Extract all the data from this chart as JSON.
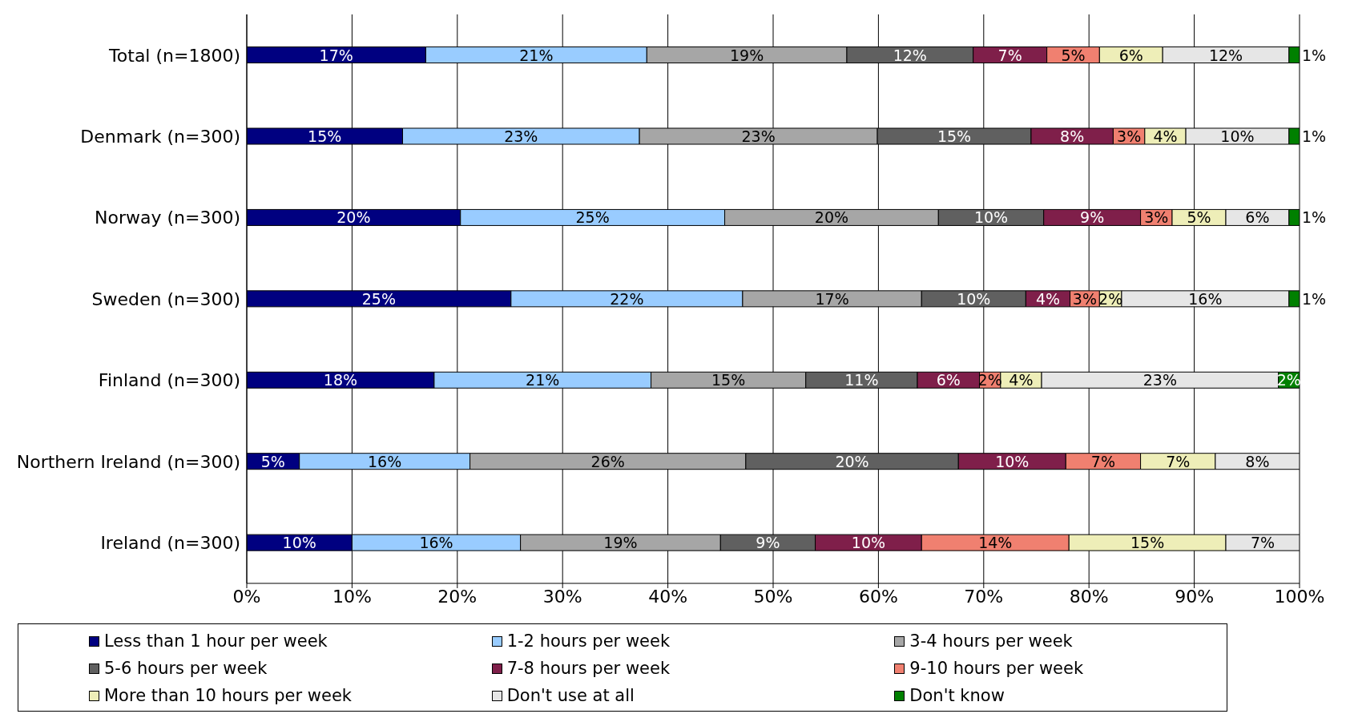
{
  "chart_data": {
    "type": "bar",
    "orientation": "horizontal",
    "stacked": true,
    "categories": [
      "Total (n=1800)",
      "Denmark (n=300)",
      "Norway (n=300)",
      "Sweden (n=300)",
      "Finland (n=300)",
      "Northern Ireland (n=300)",
      "Ireland (n=300)"
    ],
    "xlim": [
      0,
      100
    ],
    "xticks": [
      {
        "value": 0,
        "label": "0%"
      },
      {
        "value": 10,
        "label": "10%"
      },
      {
        "value": 20,
        "label": "20%"
      },
      {
        "value": 30,
        "label": "30%"
      },
      {
        "value": 40,
        "label": "40%"
      },
      {
        "value": 50,
        "label": "50%"
      },
      {
        "value": 60,
        "label": "60%"
      },
      {
        "value": 70,
        "label": "70%"
      },
      {
        "value": 80,
        "label": "80%"
      },
      {
        "value": 90,
        "label": "90%"
      },
      {
        "value": 100,
        "label": "100%"
      }
    ],
    "grid": "x",
    "legend": "bottom",
    "series": [
      {
        "name": "Less than 1 hour per week",
        "color": "#000080",
        "values": [
          17,
          14.8,
          20.3,
          25.1,
          17.8,
          5.0,
          10
        ],
        "value_labels": [
          "17%",
          "15%",
          "20%",
          "25%",
          "18%",
          "5%",
          "10%"
        ]
      },
      {
        "name": "1-2 hours per week",
        "color": "#99ccff",
        "values": [
          21,
          22.5,
          25.1,
          22.0,
          20.6,
          16.2,
          16
        ],
        "value_labels": [
          "21%",
          "23%",
          "25%",
          "22%",
          "21%",
          "16%",
          "16%"
        ]
      },
      {
        "name": "3-4 hours per week",
        "color": "#a6a6a6",
        "values": [
          19,
          22.6,
          20.3,
          17.0,
          14.7,
          26.2,
          19
        ],
        "value_labels": [
          "19%",
          "23%",
          "20%",
          "17%",
          "15%",
          "26%",
          "19%"
        ]
      },
      {
        "name": "5-6 hours per week",
        "color": "#606060",
        "values": [
          12,
          14.6,
          10.0,
          9.9,
          10.6,
          20.2,
          9
        ],
        "value_labels": [
          "12%",
          "15%",
          "10%",
          "10%",
          "11%",
          "20%",
          "9%"
        ]
      },
      {
        "name": "7-8 hours per week",
        "color": "#7f1f4a",
        "values": [
          7,
          7.8,
          9.2,
          4.2,
          5.9,
          10.2,
          10.1
        ],
        "value_labels": [
          "7%",
          "8%",
          "9%",
          "4%",
          "6%",
          "10%",
          "10%"
        ]
      },
      {
        "name": "9-10 hours per week",
        "color": "#f08070",
        "values": [
          5,
          3.0,
          3.0,
          2.8,
          2.0,
          7.1,
          14
        ],
        "value_labels": [
          "5%",
          "3%",
          "3%",
          "3%",
          "2%",
          "7%",
          "14%"
        ]
      },
      {
        "name": "More than 10 hours per week",
        "color": "#eeeeb8",
        "values": [
          6,
          3.9,
          5.1,
          2.1,
          3.9,
          7.1,
          14.9
        ],
        "value_labels": [
          "6%",
          "4%",
          "5%",
          "2%",
          "4%",
          "7%",
          "15%"
        ]
      },
      {
        "name": "Don't use at all",
        "color": "#e6e6e6",
        "values": [
          12,
          9.8,
          6.0,
          15.9,
          22.5,
          8.0,
          7
        ],
        "value_labels": [
          "12%",
          "10%",
          "6%",
          "16%",
          "23%",
          "8%",
          "7%"
        ]
      },
      {
        "name": "Don't know",
        "color": "#008000",
        "values": [
          1,
          1.0,
          1.0,
          1.0,
          2.0,
          null,
          null
        ],
        "value_labels": [
          "1%",
          "1%",
          "1%",
          "1%",
          "2%",
          null,
          null
        ]
      }
    ]
  }
}
